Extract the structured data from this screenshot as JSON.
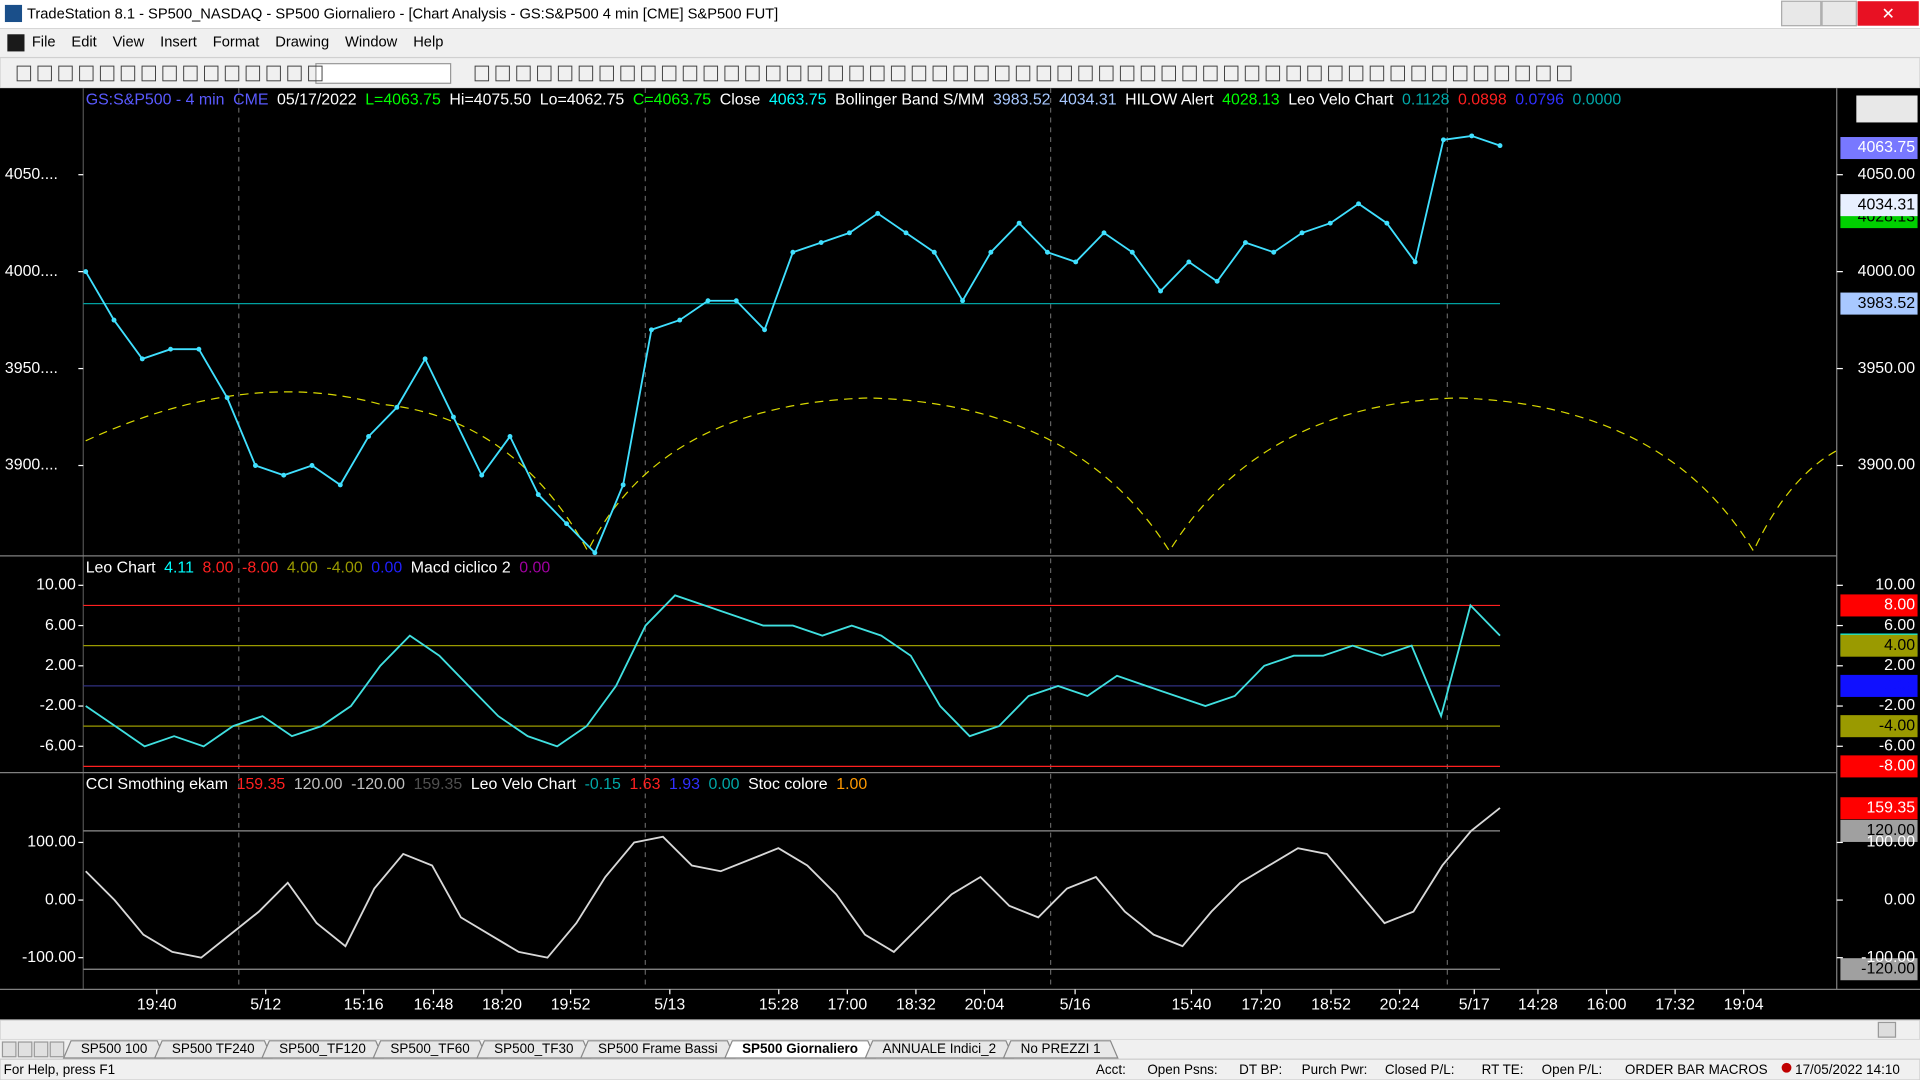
{
  "title_bar": {
    "title": "TradeStation 8.1 - SP500_NASDAQ - SP500 Giornaliero - [Chart Analysis - GS:S&P500  4 min  [CME] S&P500 FUT]"
  },
  "menu": [
    "File",
    "Edit",
    "View",
    "Insert",
    "Format",
    "Drawing",
    "Window",
    "Help"
  ],
  "panels": [
    {
      "header": [
        {
          "label": "GS:S&P500 - 4 min",
          "color": "#5a5aff"
        },
        {
          "label": "CME",
          "color": "#5a5aff"
        },
        {
          "label": "05/17/2022",
          "color": "#ffffff"
        },
        {
          "label": "L=4063.75",
          "color": "#00ff00"
        },
        {
          "label": "Hi=4075.50",
          "color": "#ffffff"
        },
        {
          "label": "Lo=4062.75",
          "color": "#ffffff"
        },
        {
          "label": "C=4063.75",
          "color": "#00ff00"
        },
        {
          "label": "Close",
          "color": "#ffffff"
        },
        {
          "value": 4063.75,
          "label": "4063.75",
          "color": "#00ffff"
        },
        {
          "label": "Bollinger Band S/MM",
          "color": "#ffffff"
        },
        {
          "value": 3983.52,
          "label": "3983.52",
          "color": "#a8c8ff"
        },
        {
          "value": 4034.31,
          "label": "4034.31",
          "color": "#a8c8ff"
        },
        {
          "label": "HILOW Alert",
          "color": "#ffffff"
        },
        {
          "value": 4028.13,
          "label": "4028.13",
          "color": "#00ff00"
        },
        {
          "label": "Leo Velo Chart",
          "color": "#ffffff"
        },
        {
          "value": 0.1128,
          "label": "0.1128",
          "color": "#00a8a8"
        },
        {
          "value": 0.0898,
          "label": "0.0898",
          "color": "#ff2020"
        },
        {
          "value": 0.0796,
          "label": "0.0796",
          "color": "#3030ff"
        },
        {
          "value": 0,
          "label": "0.0000",
          "color": "#00a8a8"
        }
      ],
      "ylim": [
        3854,
        4094
      ],
      "yticks_left": [
        {
          "value": 4050,
          "label": "4050...."
        },
        {
          "value": 4000,
          "label": "4000...."
        },
        {
          "value": 3950,
          "label": "3950...."
        },
        {
          "value": 3900,
          "label": "3900...."
        }
      ],
      "yticks_right": [
        {
          "value": 4050,
          "label": "4050.00"
        },
        {
          "value": 4000,
          "label": "4000.00"
        },
        {
          "value": 3950,
          "label": "3950.00"
        },
        {
          "value": 3900,
          "label": "3900.00"
        }
      ],
      "color": "#40e0ff",
      "values": [
        4000,
        3975,
        3955,
        3960,
        3960,
        3935,
        3900,
        3895,
        3900,
        3890,
        3915,
        3930,
        3955,
        3925,
        3895,
        3915,
        3885,
        3870,
        3855,
        3890,
        3970,
        3975,
        3985,
        3985,
        3970,
        4010,
        4015,
        4020,
        4030,
        4020,
        4010,
        3985,
        4010,
        4025,
        4010,
        4005,
        4020,
        4010,
        3990,
        4005,
        3995,
        4015,
        4010,
        4020,
        4025,
        4035,
        4025,
        4005,
        4068,
        4070,
        4065
      ]
    },
    {
      "header": [
        {
          "label": "Leo Chart",
          "color": "#ffffff"
        },
        {
          "value": 4.11,
          "label": "4.11",
          "color": "#00ffff"
        },
        {
          "value": 8,
          "label": "8.00",
          "color": "#ff2020"
        },
        {
          "value": -8,
          "label": "-8.00",
          "color": "#ff2020"
        },
        {
          "value": 4,
          "label": "4.00",
          "color": "#9a9a00"
        },
        {
          "value": -4,
          "label": "-4.00",
          "color": "#9a9a00"
        },
        {
          "value": 0,
          "label": "0.00",
          "color": "#2020ff"
        },
        {
          "label": "Macd ciclico 2",
          "color": "#ffffff"
        },
        {
          "value": 0,
          "label": "0.00",
          "color": "#a000a0"
        }
      ],
      "ylim": [
        -8.5,
        12.8
      ],
      "yticks_left": [
        {
          "value": 10,
          "label": "10.00"
        },
        {
          "value": 6,
          "label": "6.00"
        },
        {
          "value": 2,
          "label": "2.00"
        },
        {
          "value": -2,
          "label": "-2.00"
        },
        {
          "value": -6,
          "label": "-6.00"
        }
      ],
      "yticks_right": [
        {
          "value": 10,
          "label": "10.00"
        },
        {
          "value": 6,
          "label": "6.00"
        },
        {
          "value": 2,
          "label": "2.00"
        },
        {
          "value": -2,
          "label": "-2.00"
        },
        {
          "value": -6,
          "label": "-6.00"
        }
      ],
      "color": "#40e0e0",
      "values": [
        -2,
        -4,
        -6,
        -5,
        -6,
        -4,
        -3,
        -5,
        -4,
        -2,
        2,
        5,
        3,
        0,
        -3,
        -5,
        -6,
        -4,
        0,
        6,
        9,
        8,
        7,
        6,
        6,
        5,
        6,
        5,
        3,
        -2,
        -5,
        -4,
        -1,
        0,
        -1,
        1,
        0,
        -1,
        -2,
        -1,
        2,
        3,
        3,
        4,
        3,
        4,
        -3,
        8,
        5
      ]
    },
    {
      "header": [
        {
          "label": "CCI Smothing ekam",
          "color": "#ffffff"
        },
        {
          "value": 159.35,
          "label": "159.35",
          "color": "#ff2020"
        },
        {
          "value": 120,
          "label": "120.00",
          "color": "#c0c0c0"
        },
        {
          "value": -120,
          "label": "-120.00",
          "color": "#c0c0c0"
        },
        {
          "value": 159.35,
          "label": "159.35",
          "color": "#505050"
        },
        {
          "label": "Leo Velo Chart",
          "color": "#ffffff"
        },
        {
          "value": -0.15,
          "label": "-0.15",
          "color": "#00a8a8"
        },
        {
          "value": 1.63,
          "label": "1.63",
          "color": "#ff2020"
        },
        {
          "value": 1.93,
          "label": "1.93",
          "color": "#3030ff"
        },
        {
          "value": 0,
          "label": "0.00",
          "color": "#00a8a8"
        },
        {
          "label": "Stoc colore",
          "color": "#ffffff"
        },
        {
          "value": 1,
          "label": "1.00",
          "color": "#ff9900"
        }
      ],
      "ylim": [
        -155,
        219
      ],
      "yticks_left": [
        {
          "value": 100,
          "label": "100.00"
        },
        {
          "value": 0,
          "label": "0.00"
        },
        {
          "value": -100,
          "label": "-100.00"
        }
      ],
      "yticks_right": [
        {
          "value": 100,
          "label": "100.00"
        },
        {
          "value": 0,
          "label": "0.00"
        },
        {
          "value": -100,
          "label": "-100.00"
        }
      ],
      "color": "#d8d8d8",
      "values": [
        50,
        0,
        -60,
        -90,
        -100,
        -60,
        -20,
        30,
        -40,
        -80,
        20,
        80,
        60,
        -30,
        -60,
        -90,
        -100,
        -40,
        40,
        100,
        110,
        60,
        50,
        70,
        90,
        60,
        10,
        -60,
        -90,
        -40,
        10,
        40,
        -10,
        -30,
        20,
        40,
        -20,
        -60,
        -80,
        -20,
        30,
        60,
        90,
        80,
        20,
        -40,
        -20,
        60,
        120,
        160
      ]
    }
  ],
  "time_axis": [
    "19:40",
    "5/12",
    "15:16",
    "16:48",
    "18:20",
    "19:52",
    "5/13",
    "15:28",
    "17:00",
    "18:32",
    "20:04",
    "5/16",
    "15:40",
    "17:20",
    "18:52",
    "20:24",
    "5/17",
    "14:28",
    "16:00",
    "17:32",
    "19:04"
  ],
  "tabs": [
    "SP500 100",
    "SP500 TF240",
    "SP500_TF120",
    "SP500_TF60",
    "SP500_TF30",
    "SP500 Frame Bassi",
    "SP500 Giornaliero",
    "ANNUALE Indici_2",
    "No PREZZI 1"
  ],
  "status_bar": {
    "help": "For Help, press F1",
    "fields": [
      "Acct:",
      "Open Psns:",
      "DT BP:",
      "Purch Pwr:",
      "Closed P/L:",
      "RT TE:",
      "Open P/L:"
    ],
    "macros": "ORDER BAR  MACROS",
    "datetime": "17/05/2022 14:10"
  }
}
